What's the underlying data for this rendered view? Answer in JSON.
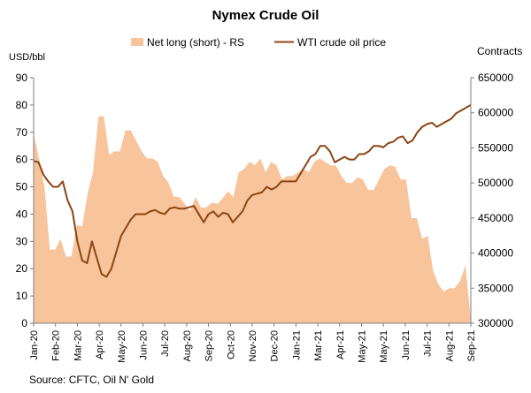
{
  "chart_data": {
    "type": "line",
    "title": "Nymex Crude Oil",
    "left_axis_unit": "USD/bbl",
    "right_axis_unit": "Contracts",
    "source": "Source: CFTC, Oil N' Gold",
    "left_ylim": [
      0,
      90
    ],
    "left_yticks": [
      "0",
      "10",
      "20",
      "30",
      "40",
      "50",
      "60",
      "70",
      "80",
      "90"
    ],
    "right_ylim": [
      300000,
      650000
    ],
    "right_yticks": [
      "300000",
      "350000",
      "400000",
      "450000",
      "500000",
      "550000",
      "600000",
      "650000"
    ],
    "x_tick_labels": [
      "Jan-20",
      "Feb-20",
      "Mar-20",
      "Apr-20",
      "May-20",
      "Jun-20",
      "Jul-20",
      "Aug-20",
      "Sep-20",
      "Oct-20",
      "Nov-20",
      "Dec-20",
      "Jan-21",
      "Mar-21",
      "Apr-21",
      "May-21",
      "May-21",
      "Jun-21",
      "Jul-21",
      "Aug-21",
      "Sep-21"
    ],
    "grid": false,
    "legend_position": "top",
    "series": [
      {
        "name": "Net long (short) - RS",
        "kind": "area",
        "axis": "right",
        "color": "#f8c49b",
        "values": [
          570000,
          535000,
          495000,
          405000,
          405000,
          420000,
          395000,
          395000,
          440000,
          438000,
          485000,
          515000,
          595000,
          595000,
          540000,
          545000,
          545000,
          575000,
          575000,
          560000,
          545000,
          535000,
          535000,
          530000,
          510000,
          500000,
          480000,
          480000,
          470000,
          460000,
          480000,
          465000,
          465000,
          472000,
          470000,
          478000,
          488000,
          480000,
          515000,
          520000,
          530000,
          525000,
          535000,
          515000,
          530000,
          525000,
          505000,
          510000,
          510000,
          515000,
          520000,
          515000,
          530000,
          535000,
          530000,
          525000,
          525000,
          510000,
          500000,
          500000,
          508000,
          505000,
          490000,
          490000,
          505000,
          520000,
          525000,
          523000,
          505000,
          505000,
          450000,
          450000,
          420000,
          425000,
          375000,
          355000,
          345000,
          350000,
          350000,
          360000,
          383000,
          305000
        ]
      },
      {
        "name": "WTI crude oil price",
        "kind": "line",
        "axis": "left",
        "color": "#8b4513",
        "values": [
          59.5,
          59.0,
          54.5,
          52.0,
          50.0,
          50.0,
          52.0,
          45.0,
          41.0,
          30.0,
          23.0,
          22.0,
          30.0,
          24.0,
          18.0,
          17.0,
          20.0,
          26.0,
          32.0,
          35.0,
          38.0,
          40.0,
          40.0,
          40.0,
          41.0,
          41.5,
          40.5,
          40.0,
          42.0,
          42.5,
          42.0,
          42.0,
          42.5,
          43.0,
          40.0,
          37.0,
          40.0,
          41.0,
          39.0,
          40.5,
          40.0,
          37.0,
          39.0,
          41.0,
          45.0,
          47.0,
          47.5,
          48.0,
          50.0,
          49.0,
          50.0,
          52.0,
          52.0,
          52.0,
          52.0,
          55.0,
          58.0,
          61.0,
          62.0,
          65.0,
          65.0,
          63.0,
          59.0,
          60.0,
          61.0,
          60.0,
          60.0,
          62.0,
          62.0,
          63.0,
          65.0,
          65.0,
          64.5,
          66.0,
          66.5,
          68.0,
          68.5,
          66.0,
          67.0,
          70.0,
          72.0,
          73.0,
          73.5,
          72.0,
          73.0,
          74.0,
          75.0,
          77.0,
          78.0,
          79.0,
          80.0
        ]
      }
    ]
  }
}
